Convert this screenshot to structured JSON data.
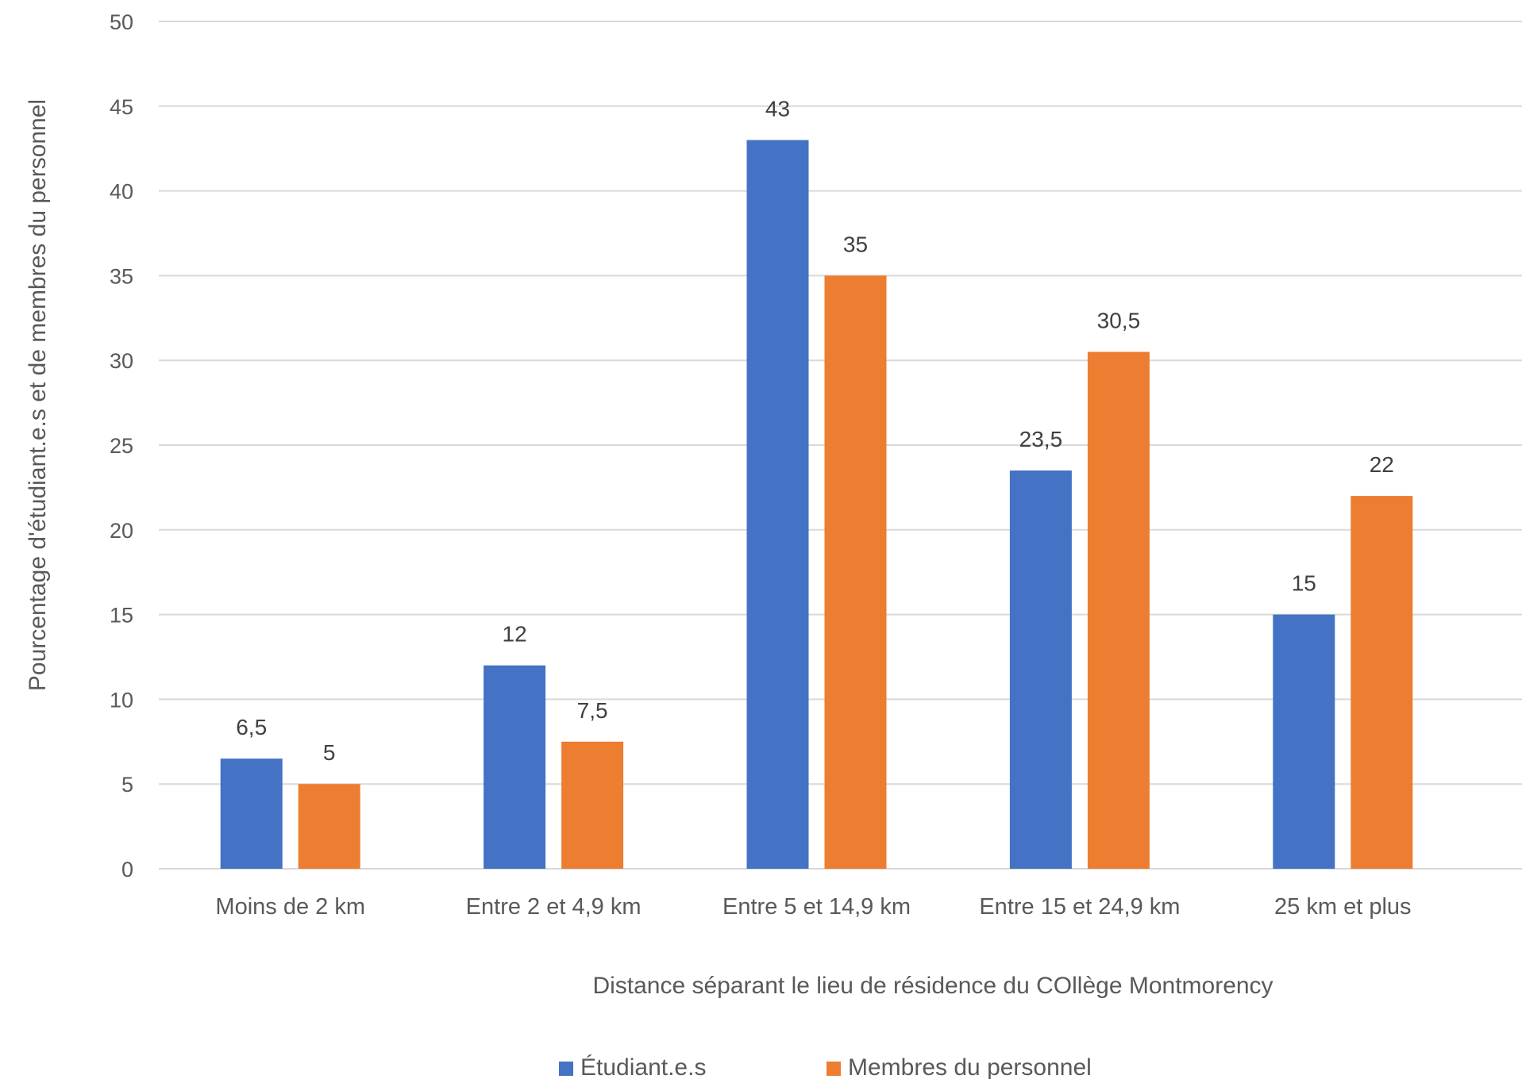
{
  "chart_data": {
    "type": "bar",
    "title": "",
    "categories": [
      "Moins de 2 km",
      "Entre 2 et 4,9 km",
      "Entre 5 et 14,9 km",
      "Entre 15 et 24,9 km",
      "25 km et plus"
    ],
    "series": [
      {
        "name": "Étudiant.e.s",
        "color": "#4472c4",
        "values": [
          6.5,
          12,
          43,
          23.5,
          15
        ],
        "labels": [
          "6,5",
          "12",
          "43",
          "23,5",
          "15"
        ]
      },
      {
        "name": "Membres du personnel",
        "color": "#ed7d31",
        "values": [
          5,
          7.5,
          35,
          30.5,
          22
        ],
        "labels": [
          "5",
          "7,5",
          "35",
          "30,5",
          "22"
        ]
      }
    ],
    "xlabel": "Distance séparant le lieu de résidence du COllège Montmorency",
    "ylabel": "Pourcentage d'étudiant.e.s et de membres du personnel",
    "ylim": [
      0,
      50
    ],
    "yticks": [
      0,
      5,
      10,
      15,
      20,
      25,
      30,
      35,
      40,
      45,
      50
    ],
    "grid": true,
    "legend": "bottom"
  }
}
